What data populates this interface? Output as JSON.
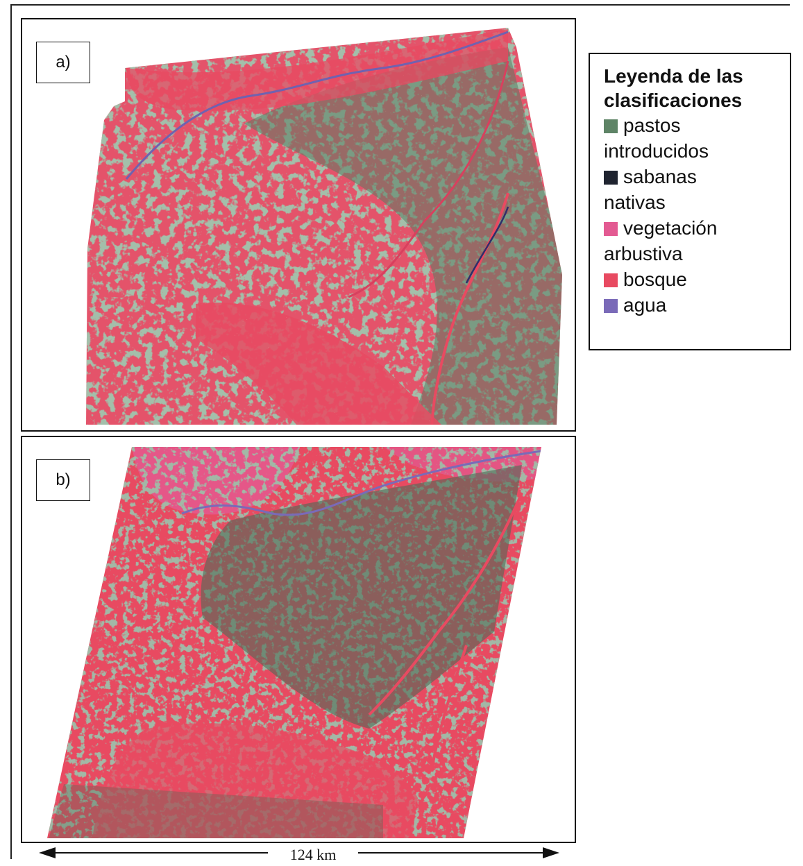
{
  "panels": [
    {
      "label": "a)"
    },
    {
      "label": "b)"
    }
  ],
  "legend": {
    "title_line1": "Leyenda de las",
    "title_line2": "clasificaciones",
    "items": [
      {
        "line1": "pastos",
        "line2": "introducidos",
        "color": "#5e8466"
      },
      {
        "line1": "sabanas",
        "line2": "nativas",
        "color": "#1f2430"
      },
      {
        "line1": "vegetación",
        "line2": "arbustiva",
        "color": "#e35a92"
      },
      {
        "line1": "bosque",
        "line2": "",
        "color": "#e84a61"
      },
      {
        "line1": "agua",
        "line2": "",
        "color": "#7a6ab8"
      }
    ]
  },
  "scale_bar": {
    "label": "124 km"
  }
}
